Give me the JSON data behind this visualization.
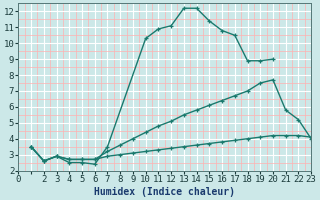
{
  "xlabel": "Humidex (Indice chaleur)",
  "xlim": [
    0,
    23
  ],
  "ylim": [
    2,
    12.5
  ],
  "xticks": [
    0,
    1,
    2,
    3,
    4,
    5,
    6,
    7,
    8,
    9,
    10,
    11,
    12,
    13,
    14,
    15,
    16,
    17,
    18,
    19,
    20,
    21,
    22,
    23
  ],
  "yticks": [
    2,
    3,
    4,
    5,
    6,
    7,
    8,
    9,
    10,
    11,
    12
  ],
  "bg_color": "#cce8e8",
  "line_color": "#1a7a6e",
  "grid_color": "#ffffff",
  "minor_grid_color": "#ffb0b0",
  "lines": [
    {
      "x": [
        1,
        2,
        3,
        4,
        5,
        6,
        7,
        10,
        11,
        12,
        13,
        14,
        15,
        16,
        17,
        18,
        19,
        20
      ],
      "y": [
        3.5,
        2.6,
        2.9,
        2.5,
        2.5,
        2.4,
        3.5,
        10.3,
        10.9,
        11.1,
        12.2,
        12.2,
        11.4,
        10.8,
        10.5,
        8.9,
        8.9,
        9.0
      ]
    },
    {
      "x": [
        1,
        2,
        3,
        4,
        5,
        6,
        7,
        8,
        9,
        10,
        11,
        12,
        13,
        14,
        15,
        16,
        17,
        18,
        19,
        20,
        21,
        22,
        23
      ],
      "y": [
        3.5,
        2.6,
        2.9,
        2.7,
        2.7,
        2.7,
        3.2,
        3.6,
        4.0,
        4.4,
        4.8,
        5.1,
        5.5,
        5.8,
        6.1,
        6.4,
        6.7,
        7.0,
        7.5,
        7.7,
        5.8,
        5.2,
        4.0
      ]
    },
    {
      "x": [
        1,
        2,
        3,
        4,
        5,
        6,
        7,
        8,
        9,
        10,
        11,
        12,
        13,
        14,
        15,
        16,
        17,
        18,
        19,
        20,
        21,
        22,
        23
      ],
      "y": [
        3.5,
        2.6,
        2.9,
        2.7,
        2.7,
        2.7,
        2.9,
        3.0,
        3.1,
        3.2,
        3.3,
        3.4,
        3.5,
        3.6,
        3.7,
        3.8,
        3.9,
        4.0,
        4.1,
        4.2,
        4.2,
        4.2,
        4.1
      ]
    }
  ],
  "x_skip_label": [
    1
  ],
  "tick_fontsize": 6.5,
  "xlabel_fontsize": 7,
  "xlabel_color": "#1a3a6e",
  "line_width": 1.0,
  "marker_size": 3.5
}
